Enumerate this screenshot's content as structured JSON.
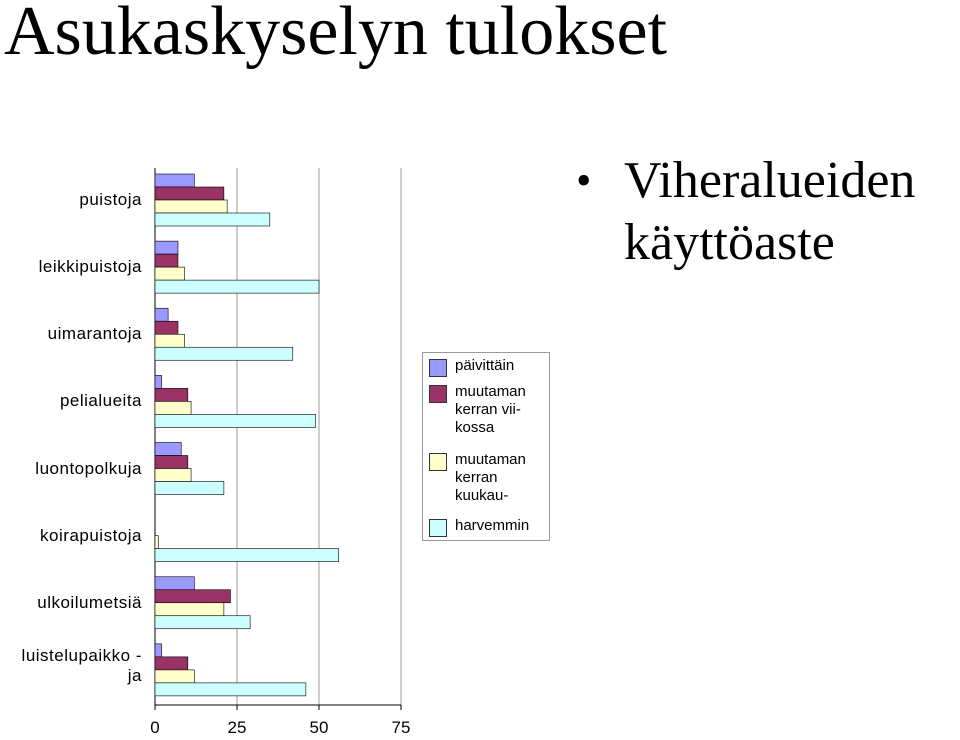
{
  "title": "Asukaskyselyn tulokset",
  "bullet": "Viheralueiden käyttöaste",
  "chart_data": {
    "type": "hbar",
    "categories": [
      "puistoja",
      "leikkipuistoja",
      "uimarantoja",
      "pelialueita",
      "luontopolkuja",
      "koirapuistoja",
      "ulkoilumetsiä",
      "luistelupaikko -\nja"
    ],
    "series": [
      {
        "name": "päivittäin",
        "color": "#9999ff",
        "values": [
          12,
          7,
          4,
          2,
          8,
          0,
          12,
          2
        ]
      },
      {
        "name": "muutaman\nkerran vii-\nkossa",
        "color": "#993366",
        "values": [
          21,
          7,
          7,
          10,
          10,
          0,
          23,
          10
        ]
      },
      {
        "name": "muutaman\nkerran\nkuukau-",
        "color": "#ffffcc",
        "values": [
          22,
          9,
          9,
          11,
          11,
          1,
          21,
          12
        ]
      },
      {
        "name": "harvemmin",
        "color": "#ccffff",
        "values": [
          35,
          50,
          42,
          49,
          21,
          56,
          29,
          46
        ]
      }
    ],
    "xlim": [
      0,
      75
    ],
    "xticks": [
      0,
      25,
      50,
      75
    ],
    "grid": true
  }
}
